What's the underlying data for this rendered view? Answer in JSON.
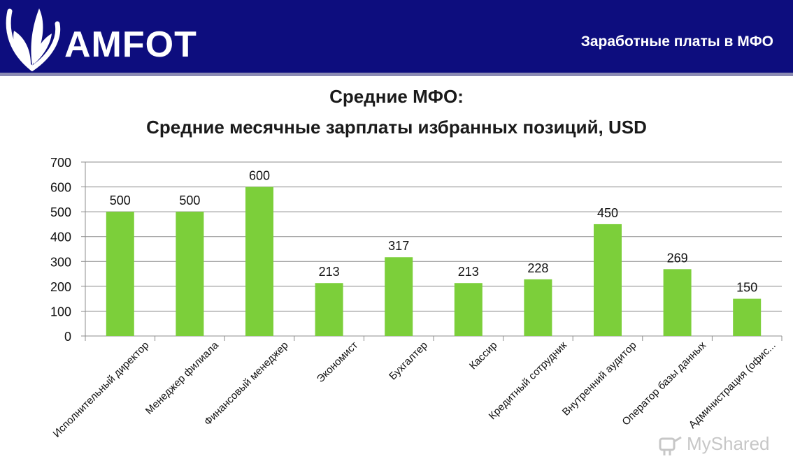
{
  "header": {
    "logo_text": "AMFOT",
    "title": "Заработные платы в МФО"
  },
  "chart_title": {
    "line1": "Средние МФО:",
    "line2": "Средние месячные зарплаты избранных позиций, USD"
  },
  "colors": {
    "header_bg": "#0d0d7e",
    "bar": "#7ccf3a"
  },
  "watermark": {
    "text": "MyShared",
    "icon": "myshared-logo-icon"
  },
  "chart_data": {
    "type": "bar",
    "categories": [
      "Исполнительный директор",
      "Менеджер филиала",
      "Финансовый менеджер",
      "Экономист",
      "Бухгалтер",
      "Кассир",
      "Кредитный сотрудник",
      "Внутренний аудитор",
      "Оператор базы данных",
      "Администрация (офис..."
    ],
    "values": [
      500,
      500,
      600,
      213,
      317,
      213,
      228,
      450,
      269,
      150
    ],
    "data_labels": [
      "500",
      "500",
      "600",
      "213",
      "317",
      "213",
      "228",
      "450",
      "269",
      "150"
    ],
    "y_ticks": [
      0,
      100,
      200,
      300,
      400,
      500,
      600,
      700
    ],
    "ylim": [
      0,
      700
    ],
    "grid": true,
    "legend": "none"
  }
}
